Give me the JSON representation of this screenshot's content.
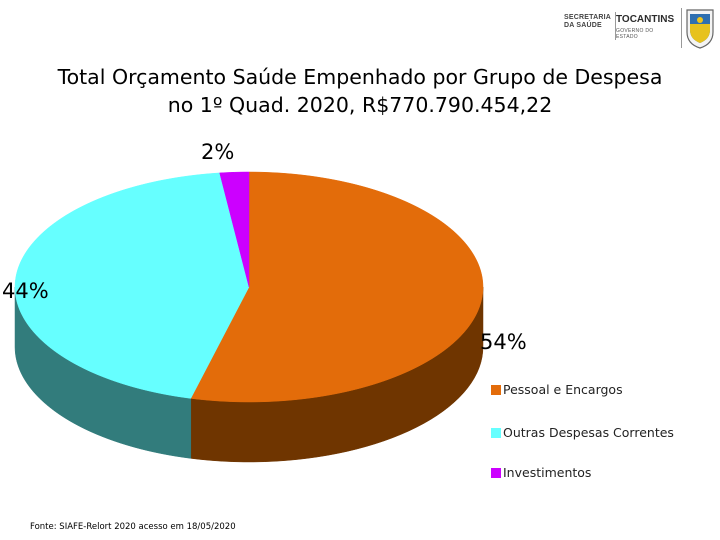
{
  "header": {
    "secretaria_logo_text": "SECRETARIA DA SAÚDE",
    "state_logo_text": "TOCANTINS",
    "state_logo_subtext": "GOVERNO DO ESTADO"
  },
  "chart_data": {
    "type": "pie",
    "title_line1": "Total Orçamento Saúde Empenhado por Grupo de Despesa",
    "title_line2": "no 1º Quad. 2020, R$770.790.454,22",
    "slices": [
      {
        "name": "Pessoal e Encargos",
        "value": 54,
        "label": "54%",
        "color": "#E36C0A",
        "side_color": "#6F3500"
      },
      {
        "name": "Outras Despesas Correntes",
        "value": 44,
        "label": "44%",
        "color": "#66FFFF",
        "side_color": "#327C7C"
      },
      {
        "name": "Investimentos",
        "value": 2,
        "label": "2%",
        "color": "#CC00FF",
        "side_color": "#66007F"
      }
    ],
    "legend_position": "bottom-right",
    "source": "Fonte: SIAFE-Relort 2020 acesso em 18/05/2020"
  }
}
